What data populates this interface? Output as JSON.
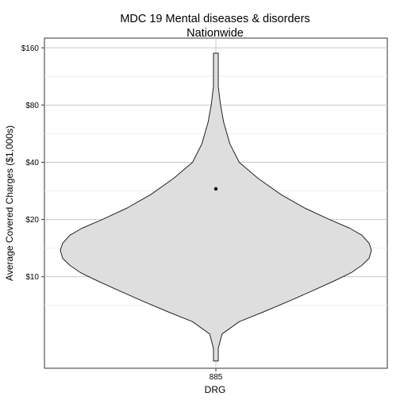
{
  "chart_data": {
    "type": "violin",
    "title": "MDC 19 Mental diseases & disorders",
    "subtitle": "Nationwide",
    "xlabel": "DRG",
    "ylabel": "Average Covered Charges ($1,000s)",
    "y_scale": "log",
    "ylim": [
      3.3,
      180
    ],
    "y_ticks": [
      10,
      20,
      40,
      80,
      160
    ],
    "y_tick_labels": [
      "$10",
      "$20",
      "$40",
      "$80",
      "$160"
    ],
    "categories": [
      "885"
    ],
    "violin": {
      "category": "885",
      "min": 3.6,
      "max": 150,
      "mean": 29,
      "profile": [
        [
          3.6,
          0.005
        ],
        [
          4.2,
          0.01
        ],
        [
          5.0,
          0.04
        ],
        [
          5.8,
          0.15
        ],
        [
          6.5,
          0.3
        ],
        [
          7.5,
          0.48
        ],
        [
          8.5,
          0.63
        ],
        [
          9.5,
          0.76
        ],
        [
          10.5,
          0.87
        ],
        [
          11.5,
          0.94
        ],
        [
          12.5,
          0.985
        ],
        [
          13.8,
          1.0
        ],
        [
          15.0,
          0.985
        ],
        [
          16.5,
          0.94
        ],
        [
          18.0,
          0.86
        ],
        [
          20.0,
          0.73
        ],
        [
          23.0,
          0.57
        ],
        [
          27.0,
          0.42
        ],
        [
          33.0,
          0.27
        ],
        [
          40.0,
          0.15
        ],
        [
          50.0,
          0.09
        ],
        [
          65.0,
          0.05
        ],
        [
          80.0,
          0.03
        ],
        [
          100.0,
          0.015
        ],
        [
          120.0,
          0.01
        ],
        [
          150.0,
          0.005
        ]
      ]
    },
    "colors": {
      "violin_fill": "#dedede",
      "violin_stroke": "#222222",
      "grid_major": "#c8c8c8",
      "grid_minor": "#efefef",
      "mean_point": "#000000"
    },
    "grid": true
  }
}
